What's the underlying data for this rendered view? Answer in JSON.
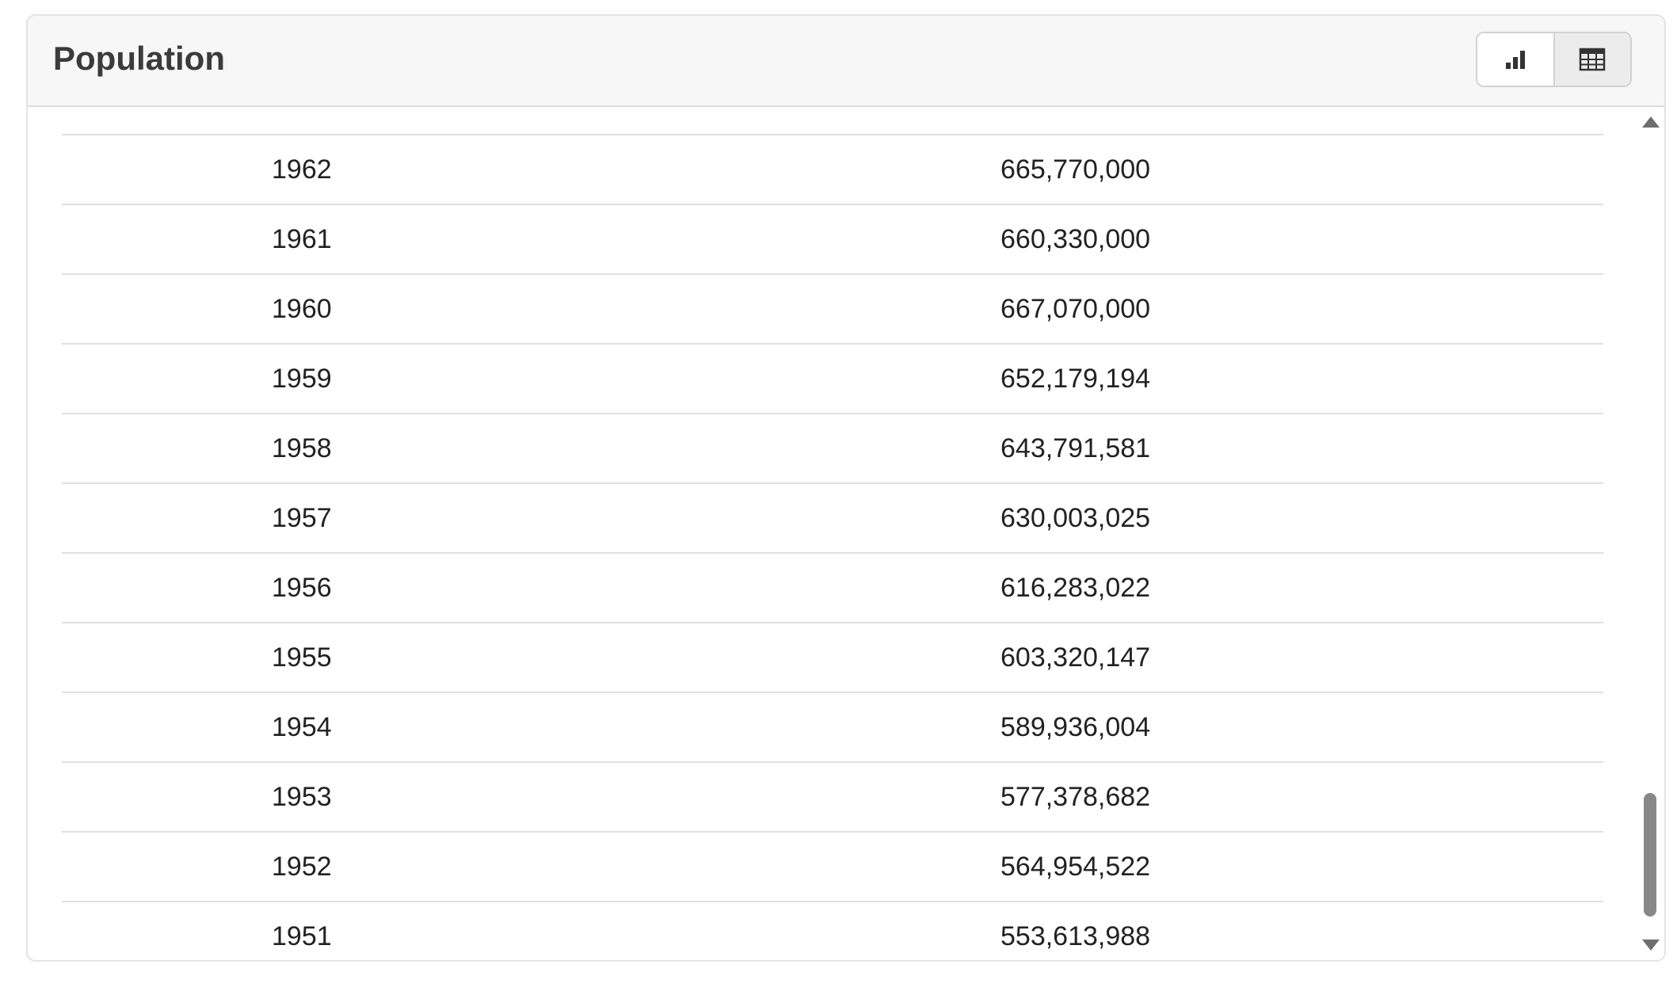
{
  "header": {
    "title": "Population"
  },
  "toggles": {
    "chart_icon": "bar-chart-icon",
    "table_icon": "table-icon",
    "active": "table"
  },
  "table": {
    "rows": [
      {
        "year": "1962",
        "population": "665,770,000"
      },
      {
        "year": "1961",
        "population": "660,330,000"
      },
      {
        "year": "1960",
        "population": "667,070,000"
      },
      {
        "year": "1959",
        "population": "652,179,194"
      },
      {
        "year": "1958",
        "population": "643,791,581"
      },
      {
        "year": "1957",
        "population": "630,003,025"
      },
      {
        "year": "1956",
        "population": "616,283,022"
      },
      {
        "year": "1955",
        "population": "603,320,147"
      },
      {
        "year": "1954",
        "population": "589,936,004"
      },
      {
        "year": "1953",
        "population": "577,378,682"
      },
      {
        "year": "1952",
        "population": "564,954,522"
      },
      {
        "year": "1951",
        "population": "553,613,988"
      }
    ]
  },
  "scrollbar": {
    "position_fraction": 0.85
  },
  "colors": {
    "header_bg": "#f7f7f7",
    "border": "#e0e0e0",
    "text": "#222222",
    "title": "#3b3b3b"
  }
}
